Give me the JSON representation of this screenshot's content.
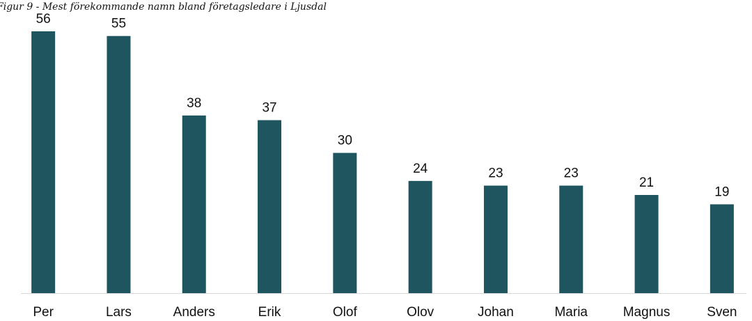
{
  "chart_data": {
    "type": "bar",
    "title": "Figur 9 - Mest förekommande namn bland företagsledare i Ljusdal",
    "categories": [
      "Per",
      "Lars",
      "Anders",
      "Erik",
      "Olof",
      "Olov",
      "Johan",
      "Maria",
      "Magnus",
      "Sven"
    ],
    "values": [
      56,
      55,
      38,
      37,
      30,
      24,
      23,
      23,
      21,
      19
    ],
    "color": "#1f555e",
    "ylim": [
      0,
      56
    ]
  }
}
